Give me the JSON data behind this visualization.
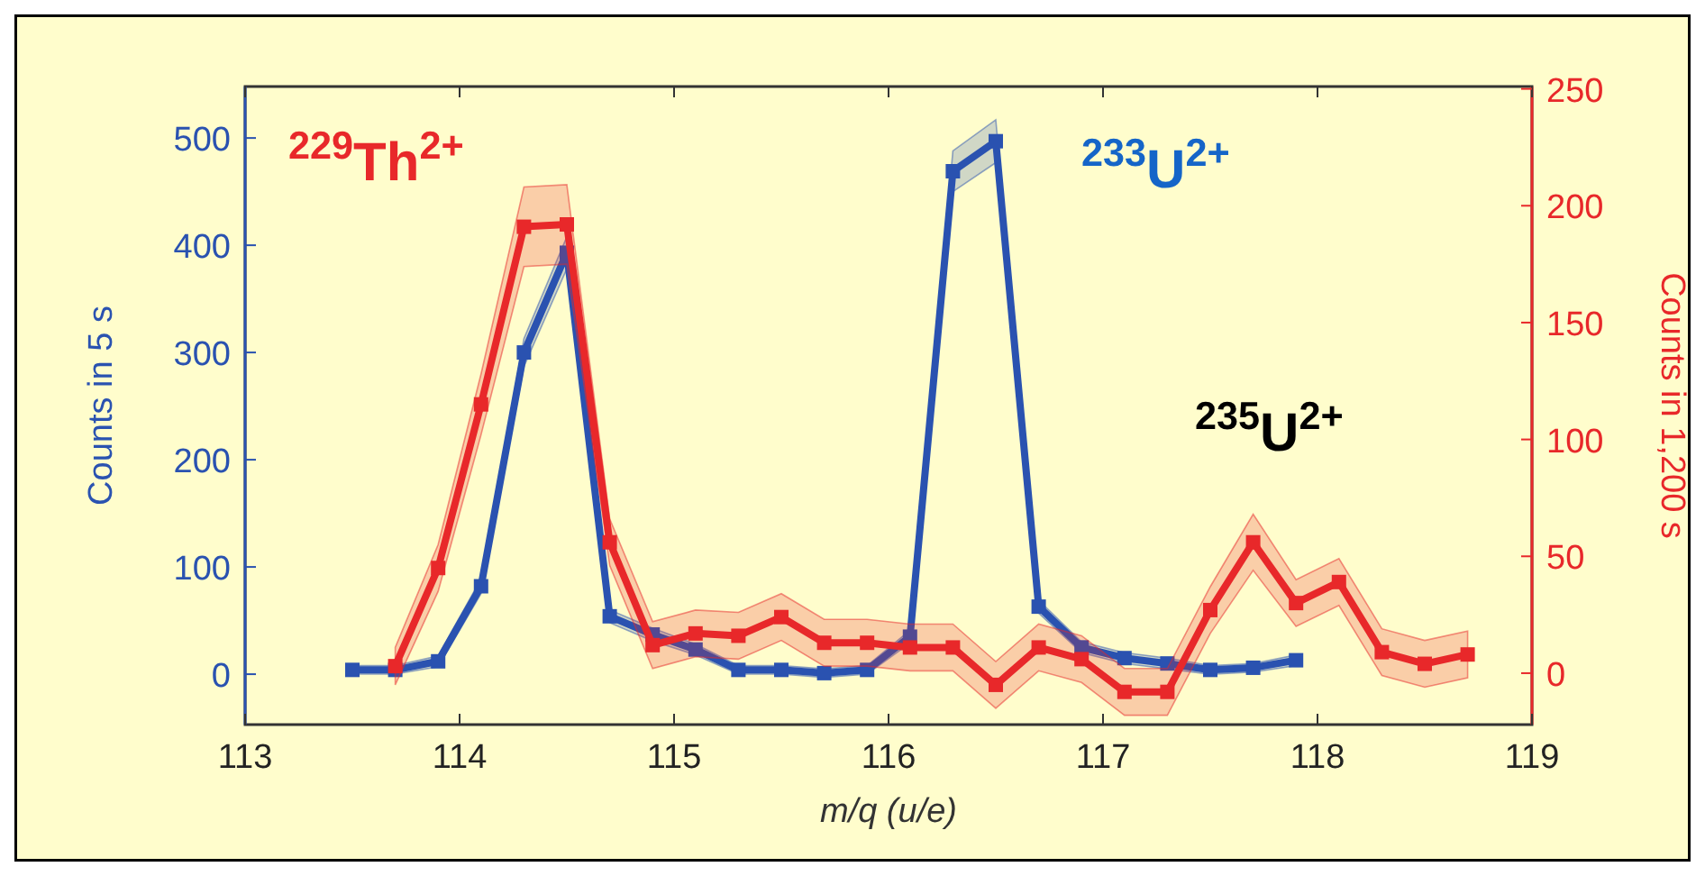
{
  "chart_data": {
    "type": "line",
    "xlabel": "m/q (u/e)",
    "ylabel": "Counts in 5 s",
    "y2label": "Counts in 1,200 s",
    "marker": "square",
    "line_style": "solid",
    "grid": false,
    "xlim": [
      113,
      119
    ],
    "xticks": [
      113,
      114,
      115,
      116,
      117,
      118,
      119
    ],
    "ylim": [
      -47,
      548
    ],
    "yticks": [
      0,
      100,
      200,
      300,
      400,
      500
    ],
    "y2lim": [
      -22,
      251
    ],
    "y2ticks": [
      0,
      50,
      100,
      150,
      200,
      250
    ],
    "series": [
      {
        "name": "$^{233}$U$^{2+}$",
        "color": "#2a52b0",
        "axis": "y",
        "x": [
          113.5,
          113.7,
          113.9,
          114.1,
          114.3,
          114.5,
          114.7,
          114.9,
          115.1,
          115.3,
          115.5,
          115.7,
          115.9,
          116.1,
          116.3,
          116.5,
          116.7,
          116.9,
          117.1,
          117.3,
          117.5,
          117.7,
          117.9
        ],
        "values": [
          4,
          4,
          12,
          82,
          300,
          393,
          54,
          37,
          23,
          4,
          4,
          1,
          4,
          35,
          469,
          497,
          63,
          25,
          15,
          10,
          4,
          6,
          13
        ],
        "lower": [
          0,
          0,
          7,
          75,
          287,
          378,
          48,
          31,
          18,
          0,
          0,
          -3,
          0,
          29,
          450,
          477,
          57,
          20,
          10,
          5,
          0,
          2,
          8
        ],
        "upper": [
          8,
          8,
          17,
          89,
          313,
          408,
          60,
          43,
          28,
          8,
          8,
          5,
          8,
          41,
          488,
          517,
          69,
          30,
          20,
          15,
          8,
          10,
          18
        ]
      },
      {
        "name": "$^{229}$Th$^{2+}$",
        "color": "#e8282a",
        "axis": "y2",
        "x": [
          113.7,
          113.9,
          114.1,
          114.3,
          114.5,
          114.7,
          114.9,
          115.1,
          115.3,
          115.5,
          115.7,
          115.9,
          116.1,
          116.3,
          116.5,
          116.7,
          116.9,
          117.1,
          117.3,
          117.5,
          117.7,
          117.9,
          118.1,
          118.3,
          118.5,
          118.7
        ],
        "values": [
          3,
          45,
          115,
          191,
          192,
          56,
          12,
          17,
          16,
          24,
          13,
          13,
          11,
          11,
          -5,
          11,
          6,
          -8,
          -8,
          27,
          56,
          30,
          39,
          9,
          4,
          8
        ],
        "lower": [
          -5,
          35,
          102,
          174,
          175,
          46,
          2,
          7,
          6,
          14,
          3,
          3,
          1,
          1,
          -15,
          1,
          -4,
          -18,
          -18,
          17,
          44,
          20,
          29,
          -1,
          -6,
          -2
        ],
        "upper": [
          11,
          55,
          128,
          208,
          209,
          66,
          22,
          27,
          26,
          34,
          23,
          23,
          21,
          21,
          5,
          21,
          16,
          2,
          2,
          37,
          68,
          40,
          49,
          19,
          14,
          18
        ]
      }
    ],
    "annotations": [
      "$^{235}$U$^{2+}$"
    ]
  }
}
